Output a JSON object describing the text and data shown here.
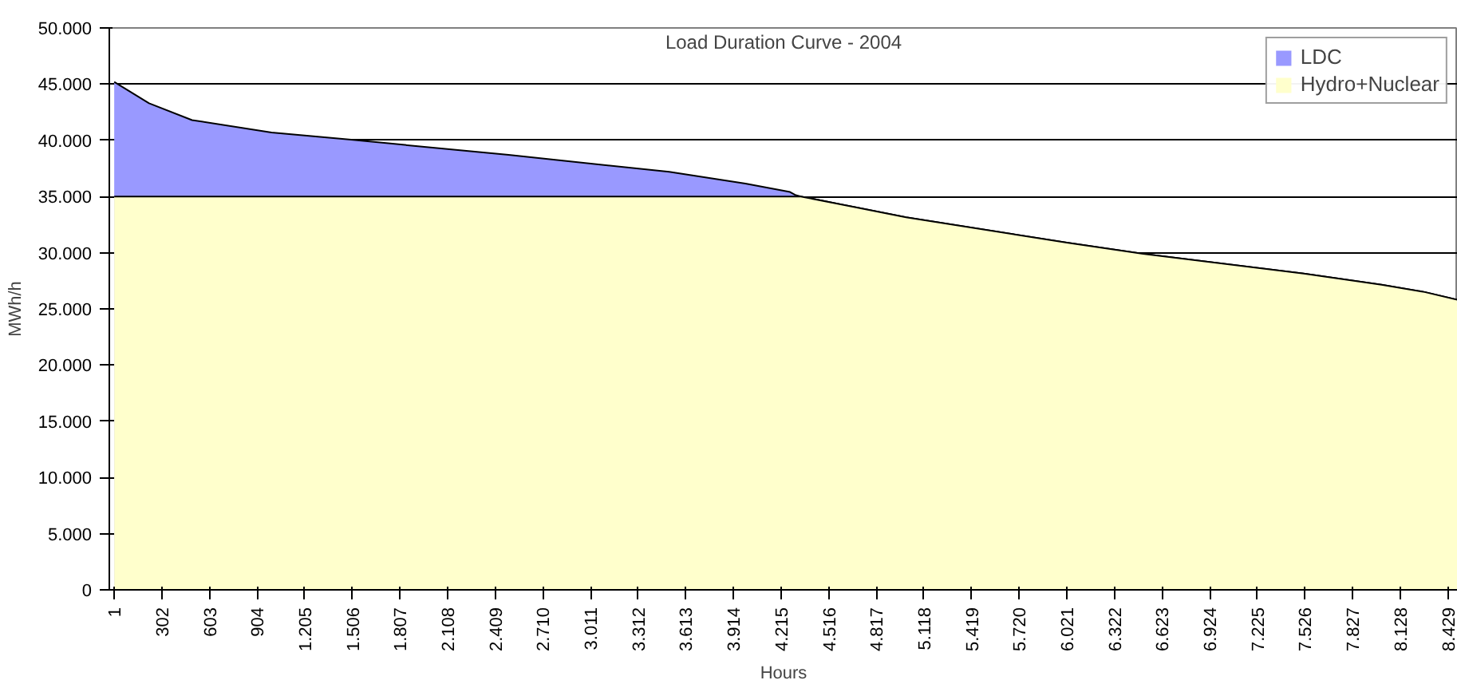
{
  "chart_data": {
    "type": "area",
    "title": "Load Duration Curve - 2004",
    "xlabel": "Hours",
    "ylabel": "MWh/h",
    "x": [
      1,
      221,
      493,
      995,
      1498,
      2493,
      3508,
      3990,
      4272,
      4304,
      4340,
      4700,
      5005,
      6021,
      6503,
      7518,
      8010,
      8282,
      8492
    ],
    "series": [
      {
        "name": "LDC",
        "color": "#9999ff",
        "values": [
          45200,
          43300,
          41800,
          40700,
          40050,
          38700,
          37200,
          36150,
          35400,
          35150,
          35000,
          34000,
          33150,
          30900,
          29900,
          28150,
          27150,
          26500,
          25800
        ]
      },
      {
        "name": "Hydro+Nuclear",
        "color": "#ffffcc",
        "values": [
          35000,
          35000,
          35000,
          35000,
          35000,
          35000,
          35000,
          35000,
          35000,
          35000,
          35000,
          34000,
          33150,
          30900,
          29900,
          28150,
          27150,
          26500,
          25800
        ]
      }
    ],
    "xlim": [
      -30,
      8492
    ],
    "xticks": [
      1,
      {
        "value": 302,
        "label": "302"
      },
      {
        "value": 603,
        "label": "603"
      },
      {
        "value": 904,
        "label": "904"
      },
      {
        "value": 1205,
        "label": "1.205"
      },
      {
        "value": 1506,
        "label": "1.506"
      },
      {
        "value": 1807,
        "label": "1.807"
      },
      {
        "value": 2108,
        "label": "2.108"
      },
      {
        "value": 2409,
        "label": "2.409"
      },
      {
        "value": 2710,
        "label": "2.710"
      },
      {
        "value": 3011,
        "label": "3.011"
      },
      {
        "value": 3312,
        "label": "3.312"
      },
      {
        "value": 3613,
        "label": "3.613"
      },
      {
        "value": 3914,
        "label": "3.914"
      },
      {
        "value": 4215,
        "label": "4.215"
      },
      {
        "value": 4516,
        "label": "4.516"
      },
      {
        "value": 4817,
        "label": "4.817"
      },
      {
        "value": 5118,
        "label": "5.118"
      },
      {
        "value": 5419,
        "label": "5.419"
      },
      {
        "value": 5720,
        "label": "5.720"
      },
      {
        "value": 6021,
        "label": "6.021"
      },
      {
        "value": 6322,
        "label": "6.322"
      },
      {
        "value": 6623,
        "label": "6.623"
      },
      {
        "value": 6924,
        "label": "6.924"
      },
      {
        "value": 7225,
        "label": "7.225"
      },
      {
        "value": 7526,
        "label": "7.526"
      },
      {
        "value": 7827,
        "label": "7.827"
      },
      {
        "value": 8128,
        "label": "8.128"
      },
      {
        "value": 8429,
        "label": "8.429"
      }
    ],
    "ylim": [
      0,
      50000
    ],
    "yticks": [
      0,
      {
        "value": 5000,
        "label": "5.000"
      },
      {
        "value": 10000,
        "label": "10.000"
      },
      {
        "value": 15000,
        "label": "15.000"
      },
      {
        "value": 20000,
        "label": "20.000"
      },
      {
        "value": 25000,
        "label": "25.000"
      },
      {
        "value": 30000,
        "label": "30.000"
      },
      {
        "value": 35000,
        "label": "35.000"
      },
      {
        "value": 40000,
        "label": "40.000"
      },
      {
        "value": 45000,
        "label": "45.000"
      },
      {
        "value": 50000,
        "label": "50.000"
      }
    ],
    "grid": "y",
    "legend": "top right"
  }
}
